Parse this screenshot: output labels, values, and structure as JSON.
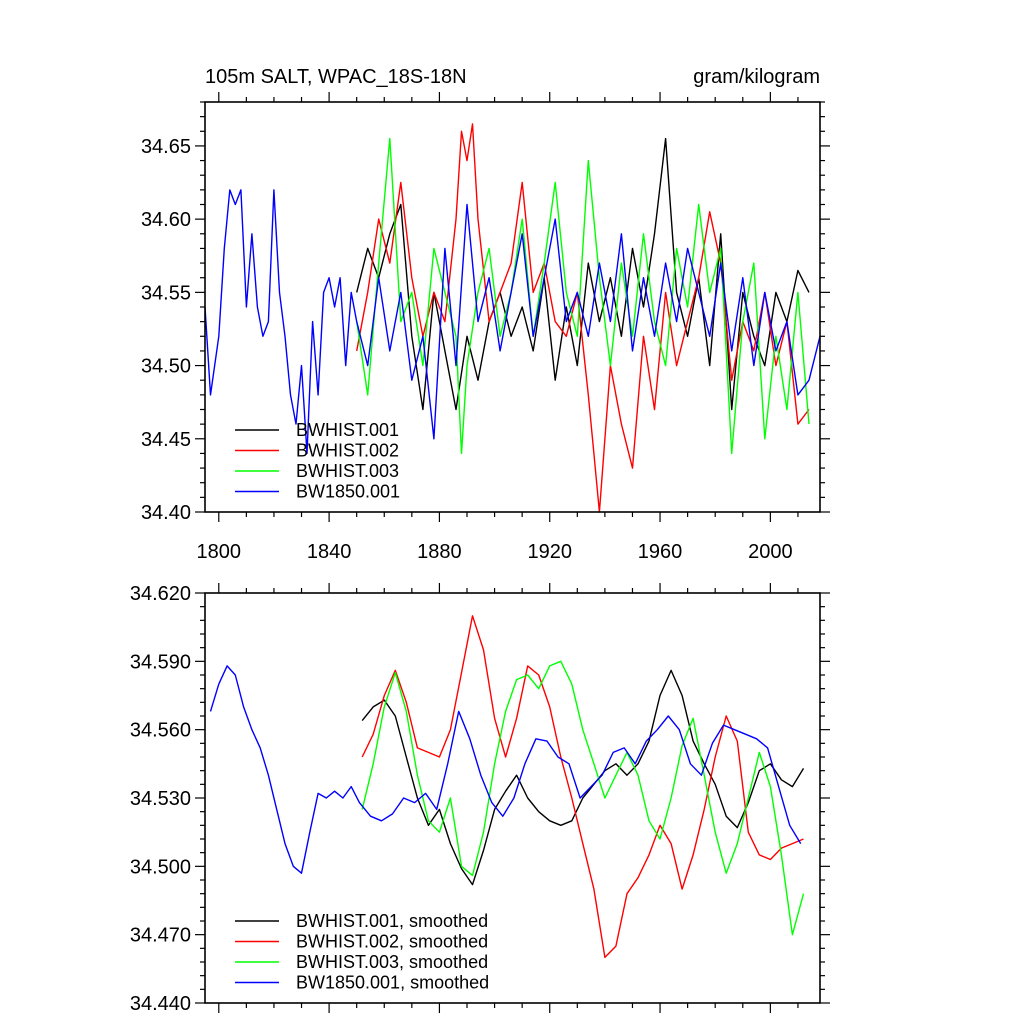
{
  "chart_data": [
    {
      "type": "line",
      "title_left": "105m SALT, WPAC_18S-18N",
      "title_right": "gram/kilogram",
      "xlim": [
        1795,
        2018
      ],
      "ylim": [
        34.4,
        34.68
      ],
      "xticks": [
        1800,
        1840,
        1880,
        1920,
        1960,
        2000
      ],
      "yticks": [
        34.4,
        34.45,
        34.5,
        34.55,
        34.6,
        34.65
      ],
      "ytick_labels": [
        "34.40",
        "34.45",
        "34.50",
        "34.55",
        "34.60",
        "34.65"
      ],
      "legend_position": "bottom-left",
      "series": [
        {
          "name": "BWHIST.001",
          "color": "#000000",
          "x": [
            1850,
            1854,
            1858,
            1862,
            1866,
            1870,
            1874,
            1878,
            1882,
            1886,
            1890,
            1894,
            1898,
            1902,
            1906,
            1910,
            1914,
            1918,
            1922,
            1926,
            1930,
            1934,
            1938,
            1942,
            1946,
            1950,
            1954,
            1958,
            1962,
            1966,
            1970,
            1974,
            1978,
            1982,
            1986,
            1990,
            1994,
            1998,
            2002,
            2006,
            2010,
            2014
          ],
          "y": [
            34.55,
            34.58,
            34.56,
            34.59,
            34.61,
            34.52,
            34.47,
            34.55,
            34.51,
            34.47,
            34.52,
            34.49,
            34.53,
            34.55,
            34.52,
            34.54,
            34.51,
            34.56,
            34.49,
            34.54,
            34.5,
            34.57,
            34.53,
            34.56,
            34.52,
            34.58,
            34.54,
            34.59,
            34.655,
            34.55,
            34.52,
            34.56,
            34.5,
            34.59,
            34.47,
            34.55,
            34.52,
            34.5,
            34.55,
            34.53,
            34.565,
            34.55
          ]
        },
        {
          "name": "BWHIST.002",
          "color": "#ff0000",
          "x": [
            1850,
            1854,
            1858,
            1862,
            1866,
            1870,
            1874,
            1878,
            1882,
            1886,
            1888,
            1890,
            1892,
            1894,
            1898,
            1902,
            1906,
            1910,
            1914,
            1918,
            1922,
            1926,
            1930,
            1934,
            1936,
            1938,
            1942,
            1946,
            1950,
            1954,
            1958,
            1962,
            1966,
            1970,
            1974,
            1978,
            1982,
            1986,
            1990,
            1994,
            1998,
            2002,
            2006,
            2010,
            2014
          ],
          "y": [
            34.51,
            34.55,
            34.6,
            34.57,
            34.625,
            34.56,
            34.52,
            34.55,
            34.53,
            34.6,
            34.66,
            34.64,
            34.665,
            34.6,
            34.53,
            34.55,
            34.57,
            34.625,
            34.55,
            34.57,
            34.53,
            34.52,
            34.55,
            34.48,
            34.44,
            34.4,
            34.5,
            34.46,
            34.43,
            34.52,
            34.47,
            34.55,
            34.5,
            34.53,
            34.56,
            34.605,
            34.57,
            34.49,
            34.53,
            34.51,
            34.55,
            34.5,
            34.53,
            34.46,
            34.47
          ]
        },
        {
          "name": "BWHIST.003",
          "color": "#00ff00",
          "x": [
            1850,
            1854,
            1858,
            1862,
            1866,
            1870,
            1874,
            1878,
            1882,
            1886,
            1888,
            1890,
            1894,
            1898,
            1902,
            1906,
            1910,
            1914,
            1918,
            1922,
            1926,
            1930,
            1934,
            1938,
            1942,
            1946,
            1950,
            1954,
            1958,
            1962,
            1966,
            1970,
            1974,
            1978,
            1982,
            1986,
            1990,
            1994,
            1998,
            2002,
            2006,
            2010,
            2014
          ],
          "y": [
            34.53,
            34.48,
            34.57,
            34.655,
            34.53,
            34.55,
            34.5,
            34.58,
            34.55,
            34.52,
            34.44,
            34.5,
            34.55,
            34.58,
            34.52,
            34.55,
            34.6,
            34.52,
            34.57,
            34.625,
            34.55,
            34.52,
            34.64,
            34.56,
            34.5,
            34.57,
            34.52,
            34.59,
            34.53,
            34.5,
            34.58,
            34.54,
            34.61,
            34.55,
            34.58,
            34.44,
            34.53,
            34.57,
            34.45,
            34.52,
            34.47,
            34.55,
            34.46
          ]
        },
        {
          "name": "BW1850.001",
          "color": "#0000ff",
          "x": [
            1795,
            1797,
            1800,
            1802,
            1804,
            1806,
            1808,
            1810,
            1812,
            1814,
            1816,
            1818,
            1820,
            1822,
            1824,
            1826,
            1828,
            1830,
            1832,
            1834,
            1836,
            1838,
            1840,
            1842,
            1844,
            1846,
            1848,
            1850,
            1854,
            1858,
            1862,
            1866,
            1870,
            1874,
            1878,
            1882,
            1886,
            1890,
            1894,
            1898,
            1902,
            1906,
            1910,
            1914,
            1918,
            1922,
            1926,
            1930,
            1934,
            1938,
            1942,
            1946,
            1950,
            1954,
            1958,
            1962,
            1966,
            1970,
            1974,
            1978,
            1982,
            1986,
            1990,
            1994,
            1998,
            2002,
            2006,
            2010,
            2014,
            2018
          ],
          "y": [
            34.54,
            34.48,
            34.52,
            34.58,
            34.62,
            34.61,
            34.62,
            34.54,
            34.59,
            34.54,
            34.52,
            34.53,
            34.62,
            34.55,
            34.52,
            34.48,
            34.46,
            34.5,
            34.44,
            34.53,
            34.48,
            34.55,
            34.56,
            34.54,
            34.56,
            34.5,
            34.55,
            34.53,
            34.5,
            34.56,
            34.51,
            34.55,
            34.49,
            34.52,
            34.45,
            34.58,
            34.5,
            34.61,
            34.53,
            34.56,
            34.51,
            34.55,
            34.59,
            34.52,
            34.56,
            34.6,
            34.53,
            34.55,
            34.52,
            34.57,
            34.53,
            34.59,
            34.51,
            34.56,
            34.52,
            34.57,
            34.53,
            34.58,
            34.55,
            34.52,
            34.57,
            34.51,
            34.56,
            34.5,
            34.55,
            34.51,
            34.53,
            34.48,
            34.49,
            34.52
          ]
        }
      ]
    },
    {
      "type": "line",
      "xlim": [
        1795,
        2018
      ],
      "ylim": [
        34.44,
        34.62
      ],
      "xticks": [
        1800,
        1840,
        1880,
        1920,
        1960,
        2000
      ],
      "yticks": [
        34.44,
        34.47,
        34.5,
        34.53,
        34.56,
        34.59,
        34.62
      ],
      "ytick_labels": [
        "34.440",
        "34.470",
        "34.500",
        "34.530",
        "34.560",
        "34.590",
        "34.620"
      ],
      "legend_position": "bottom-left",
      "series": [
        {
          "name": "BWHIST.001, smoothed",
          "color": "#000000",
          "x": [
            1852,
            1856,
            1860,
            1864,
            1868,
            1872,
            1876,
            1880,
            1884,
            1888,
            1892,
            1896,
            1900,
            1904,
            1908,
            1912,
            1916,
            1920,
            1924,
            1928,
            1932,
            1936,
            1940,
            1944,
            1948,
            1952,
            1956,
            1960,
            1964,
            1968,
            1972,
            1976,
            1980,
            1984,
            1988,
            1992,
            1996,
            2000,
            2004,
            2008,
            2012
          ],
          "y": [
            34.564,
            34.57,
            34.573,
            34.566,
            34.548,
            34.53,
            34.518,
            34.525,
            34.51,
            34.499,
            34.492,
            34.507,
            34.525,
            34.533,
            34.54,
            34.53,
            34.524,
            34.52,
            34.518,
            34.52,
            34.53,
            34.536,
            34.542,
            34.545,
            34.54,
            34.545,
            34.555,
            34.575,
            34.586,
            34.575,
            34.555,
            34.545,
            34.536,
            34.522,
            34.517,
            34.528,
            34.542,
            34.545,
            34.538,
            34.535,
            34.543
          ]
        },
        {
          "name": "BWHIST.002, smoothed",
          "color": "#ff0000",
          "x": [
            1852,
            1856,
            1860,
            1864,
            1868,
            1872,
            1876,
            1880,
            1884,
            1888,
            1892,
            1896,
            1900,
            1904,
            1908,
            1912,
            1916,
            1920,
            1924,
            1928,
            1932,
            1936,
            1940,
            1944,
            1948,
            1952,
            1956,
            1960,
            1964,
            1968,
            1972,
            1976,
            1980,
            1984,
            1988,
            1992,
            1996,
            2000,
            2004,
            2008,
            2012
          ],
          "y": [
            34.548,
            34.558,
            34.575,
            34.586,
            34.572,
            34.552,
            34.55,
            34.548,
            34.56,
            34.585,
            34.61,
            34.595,
            34.565,
            34.548,
            34.565,
            34.588,
            34.584,
            34.57,
            34.548,
            34.53,
            34.51,
            34.49,
            34.46,
            34.465,
            34.488,
            34.495,
            34.505,
            34.518,
            34.51,
            34.49,
            34.505,
            34.525,
            34.548,
            34.566,
            34.555,
            34.515,
            34.505,
            34.503,
            34.508,
            34.51,
            34.512
          ]
        },
        {
          "name": "BWHIST.003, smoothed",
          "color": "#00ff00",
          "x": [
            1852,
            1856,
            1860,
            1864,
            1868,
            1872,
            1876,
            1880,
            1884,
            1888,
            1892,
            1896,
            1900,
            1904,
            1908,
            1912,
            1916,
            1920,
            1924,
            1928,
            1932,
            1936,
            1940,
            1944,
            1948,
            1952,
            1956,
            1960,
            1964,
            1968,
            1972,
            1976,
            1980,
            1984,
            1988,
            1992,
            1996,
            2000,
            2004,
            2008,
            2012
          ],
          "y": [
            34.525,
            34.545,
            34.57,
            34.585,
            34.568,
            34.54,
            34.52,
            34.515,
            34.53,
            34.5,
            34.496,
            34.515,
            34.545,
            34.568,
            34.582,
            34.584,
            34.578,
            34.588,
            34.59,
            34.58,
            34.56,
            34.545,
            34.53,
            34.54,
            34.55,
            34.54,
            34.52,
            34.512,
            34.53,
            34.553,
            34.565,
            34.54,
            34.515,
            34.497,
            34.51,
            34.53,
            34.55,
            34.535,
            34.505,
            34.47,
            34.488
          ]
        },
        {
          "name": "BW1850.001, smoothed",
          "color": "#0000ff",
          "x": [
            1797,
            1800,
            1803,
            1806,
            1809,
            1812,
            1815,
            1818,
            1821,
            1824,
            1827,
            1830,
            1833,
            1836,
            1839,
            1842,
            1845,
            1848,
            1851,
            1855,
            1859,
            1863,
            1867,
            1871,
            1875,
            1879,
            1883,
            1887,
            1891,
            1895,
            1899,
            1903,
            1907,
            1911,
            1915,
            1919,
            1923,
            1927,
            1931,
            1935,
            1939,
            1943,
            1947,
            1951,
            1955,
            1959,
            1963,
            1967,
            1971,
            1975,
            1979,
            1983,
            1987,
            1991,
            1995,
            1999,
            2003,
            2007,
            2011
          ],
          "y": [
            34.568,
            34.58,
            34.588,
            34.584,
            34.57,
            34.56,
            34.552,
            34.54,
            34.525,
            34.51,
            34.5,
            34.497,
            34.515,
            34.532,
            34.53,
            34.533,
            34.53,
            34.535,
            34.528,
            34.522,
            34.52,
            34.523,
            34.53,
            34.528,
            34.532,
            34.525,
            34.545,
            34.568,
            34.556,
            34.54,
            34.528,
            34.522,
            34.53,
            34.545,
            34.556,
            34.555,
            34.548,
            34.545,
            34.53,
            34.535,
            34.54,
            34.55,
            34.552,
            34.545,
            34.555,
            34.56,
            34.566,
            34.56,
            34.545,
            34.54,
            34.554,
            34.562,
            34.56,
            34.558,
            34.556,
            34.552,
            34.535,
            34.518,
            34.51
          ]
        }
      ]
    }
  ]
}
